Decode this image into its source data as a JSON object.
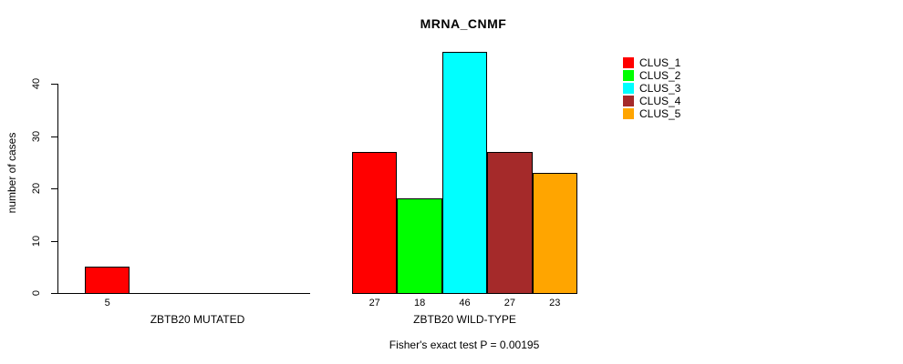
{
  "chart_data": {
    "type": "bar",
    "title": "MRNA_CNMF",
    "ylabel": "number of cases",
    "yticks": [
      0,
      10,
      20,
      30,
      40
    ],
    "ylim": [
      0,
      46
    ],
    "grid": false,
    "legend_position": "top-right",
    "legend": [
      {
        "label": "CLUS_1",
        "color": "#FF0000"
      },
      {
        "label": "CLUS_2",
        "color": "#00FF00"
      },
      {
        "label": "CLUS_3",
        "color": "#00FFFF"
      },
      {
        "label": "CLUS_4",
        "color": "#A52A2A"
      },
      {
        "label": "CLUS_5",
        "color": "#FFA500"
      }
    ],
    "groups": [
      {
        "label": "ZBTB20 MUTATED",
        "bars": [
          {
            "cluster": "CLUS_1",
            "value": 5,
            "color": "#FF0000"
          }
        ]
      },
      {
        "label": "ZBTB20 WILD-TYPE",
        "bars": [
          {
            "cluster": "CLUS_1",
            "value": 27,
            "color": "#FF0000"
          },
          {
            "cluster": "CLUS_2",
            "value": 18,
            "color": "#00FF00"
          },
          {
            "cluster": "CLUS_3",
            "value": 46,
            "color": "#00FFFF"
          },
          {
            "cluster": "CLUS_4",
            "value": 27,
            "color": "#A52A2A"
          },
          {
            "cluster": "CLUS_5",
            "value": 23,
            "color": "#FFA500"
          }
        ]
      }
    ],
    "footnote": "Fisher's exact test P = 0.00195"
  }
}
